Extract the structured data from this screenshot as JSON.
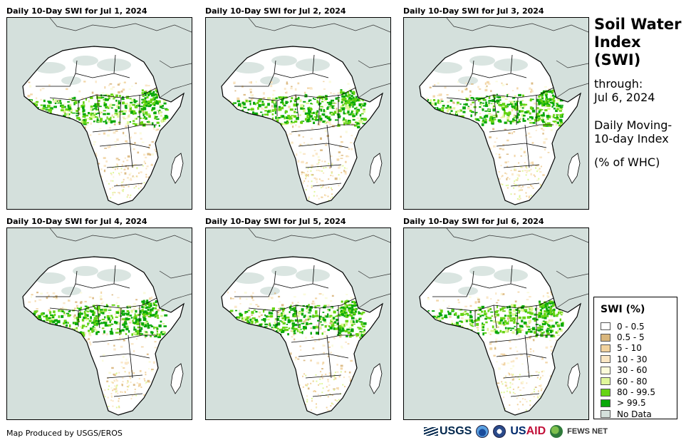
{
  "panels": [
    {
      "title": "Daily 10-Day SWI for Jul 1, 2024"
    },
    {
      "title": "Daily 10-Day SWI for Jul 2, 2024"
    },
    {
      "title": "Daily 10-Day SWI for Jul 3, 2024"
    },
    {
      "title": "Daily 10-Day SWI for Jul 4, 2024"
    },
    {
      "title": "Daily 10-Day SWI for Jul 5, 2024"
    },
    {
      "title": "Daily 10-Day SWI for Jul 6, 2024"
    }
  ],
  "sidebar": {
    "title": "Soil Water Index (SWI)",
    "through_label": "through:",
    "through_date": "Jul 6, 2024",
    "description": "Daily Moving-10-day Index",
    "unit": "(% of WHC)"
  },
  "legend": {
    "title": "SWI (%)",
    "items": [
      {
        "label": "0 - 0.5",
        "color": "#ffffff"
      },
      {
        "label": "0.5 - 5",
        "color": "#d9b67c"
      },
      {
        "label": "5 - 10",
        "color": "#f1d29e"
      },
      {
        "label": "10 - 30",
        "color": "#fae6c3"
      },
      {
        "label": "30 - 60",
        "color": "#fbfbd9"
      },
      {
        "label": "60 - 80",
        "color": "#e0f79a"
      },
      {
        "label": "80 - 99.5",
        "color": "#66d414"
      },
      {
        "label": "> 99.5",
        "color": "#0aa80a"
      },
      {
        "label": "No Data",
        "color": "#d4e0dc"
      }
    ]
  },
  "footer": {
    "credit": "Map Produced by USGS/EROS",
    "logos": {
      "usgs": "USGS",
      "usaid_us": "US",
      "usaid_aid": "AID",
      "fews": "FEWS NET"
    }
  },
  "colors": {
    "no_data": "#d4e0dc",
    "land_dry": "#ffffff",
    "wet": "#66d414",
    "saturated": "#0aa80a"
  }
}
